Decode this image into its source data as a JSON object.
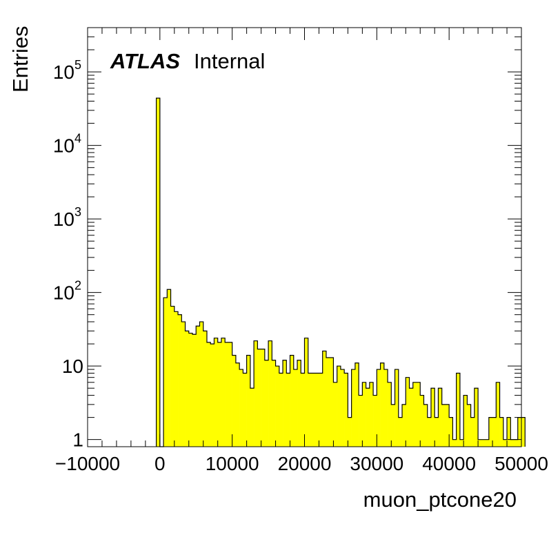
{
  "chart_data": {
    "type": "histogram",
    "title": "",
    "xlabel": "muon_ptcone20",
    "ylabel": "Entries",
    "xlim": [
      -10000,
      50000
    ],
    "ylim": [
      0.8,
      400000
    ],
    "yscale": "log",
    "grid": false,
    "legend": "none",
    "x_tick_labels": [
      "−10000",
      "0",
      "10000",
      "20000",
      "30000",
      "40000",
      "50000"
    ],
    "y_tick_labels": [
      {
        "value": 1,
        "base": "1",
        "exp": ""
      },
      {
        "value": 10,
        "base": "10",
        "exp": ""
      },
      {
        "value": 100,
        "base": "10",
        "exp": "2"
      },
      {
        "value": 1000,
        "base": "10",
        "exp": "3"
      },
      {
        "value": 10000,
        "base": "10",
        "exp": "4"
      },
      {
        "value": 100000,
        "base": "10",
        "exp": "5"
      }
    ],
    "bin_width": 500,
    "bin_start": -500,
    "series": [
      {
        "color": "#ffff00",
        "values": [
          44000,
          0,
          85,
          110,
          65,
          55,
          50,
          40,
          30,
          28,
          27,
          35,
          40,
          30,
          21,
          20,
          24,
          21,
          24,
          21,
          21,
          14,
          11,
          9,
          8,
          14,
          5,
          22,
          17,
          17,
          12,
          22,
          12,
          10,
          8,
          12,
          8,
          14,
          9,
          12,
          8,
          24,
          8,
          8,
          8,
          8,
          16,
          13,
          13,
          6,
          10,
          9,
          8,
          2,
          9,
          11,
          4,
          6,
          5,
          6,
          4,
          9,
          11,
          9,
          6,
          3,
          9,
          2,
          3,
          7,
          5,
          6,
          6,
          4,
          3,
          2,
          5,
          2,
          5,
          3,
          3,
          2,
          1,
          8,
          1,
          4,
          3,
          2,
          5,
          1,
          1,
          1,
          2,
          2,
          6,
          2,
          1,
          2,
          1,
          1,
          2,
          2
        ]
      }
    ],
    "annotation": {
      "bold": "ATLAS",
      "normal": "Internal"
    }
  }
}
